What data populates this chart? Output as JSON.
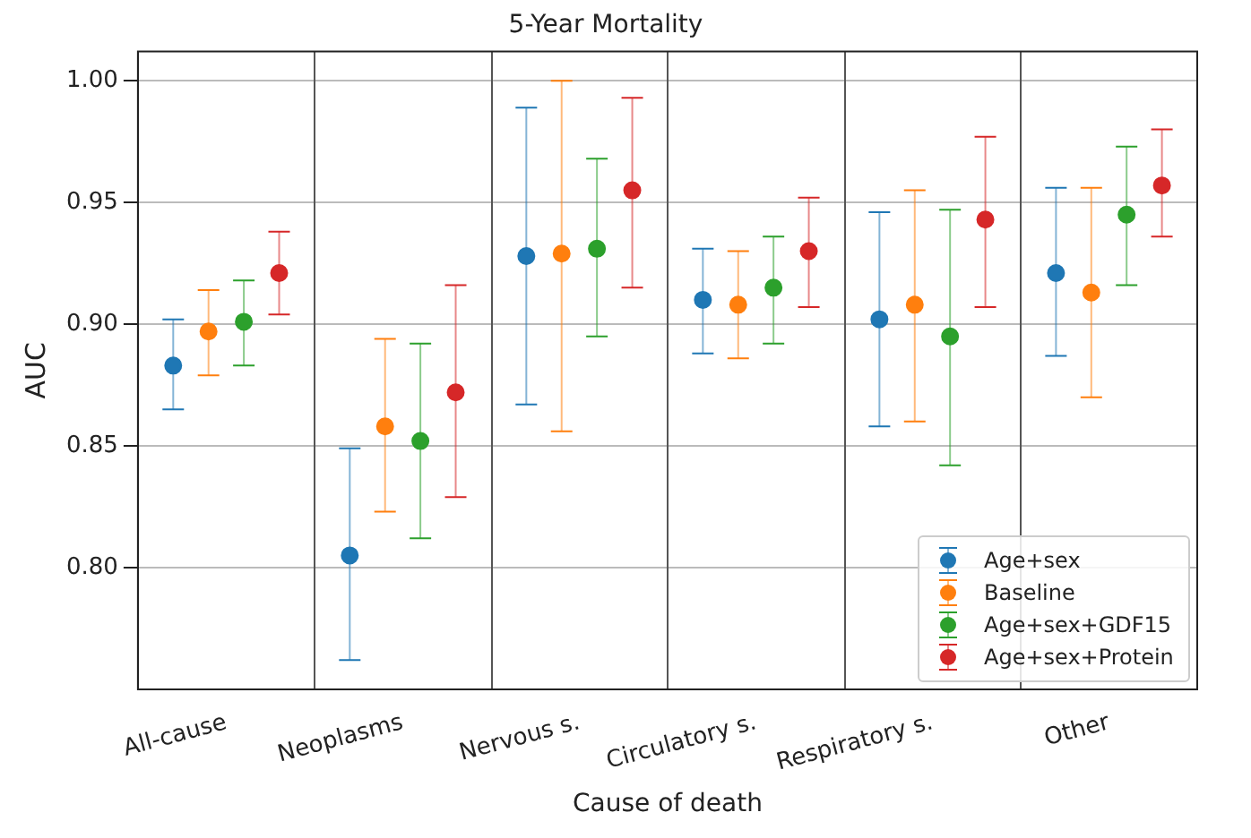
{
  "chart_data": {
    "type": "scatter",
    "title": "5-Year Mortality",
    "xlabel": "Cause of death",
    "ylabel": "AUC",
    "categories": [
      "All-cause",
      "Neoplasms",
      "Nervous s.",
      "Circulatory s.",
      "Respiratory s.",
      "Other"
    ],
    "ylim": [
      0.75,
      1.012
    ],
    "yticks": [
      {
        "value": 0.8,
        "label": "0.80"
      },
      {
        "value": 0.85,
        "label": "0.85"
      },
      {
        "value": 0.9,
        "label": "0.90"
      },
      {
        "value": 0.95,
        "label": "0.95"
      },
      {
        "value": 1.0,
        "label": "1.00"
      }
    ],
    "grid": true,
    "legend": "bottom right",
    "marker": "circle",
    "series": [
      {
        "name": "Age+sex",
        "color": "#1f77b4",
        "values": [
          0.883,
          0.805,
          0.928,
          0.91,
          0.902,
          0.921
        ],
        "errors": [
          [
            0.865,
            0.902
          ],
          [
            0.762,
            0.849
          ],
          [
            0.867,
            0.989
          ],
          [
            0.888,
            0.931
          ],
          [
            0.858,
            0.946
          ],
          [
            0.887,
            0.956
          ]
        ]
      },
      {
        "name": "Baseline",
        "color": "#ff7f0e",
        "values": [
          0.897,
          0.858,
          0.929,
          0.908,
          0.908,
          0.913
        ],
        "errors": [
          [
            0.879,
            0.914
          ],
          [
            0.823,
            0.894
          ],
          [
            0.856,
            1.0
          ],
          [
            0.886,
            0.93
          ],
          [
            0.86,
            0.955
          ],
          [
            0.87,
            0.956
          ]
        ]
      },
      {
        "name": "Age+sex+GDF15",
        "color": "#2ca02c",
        "values": [
          0.901,
          0.852,
          0.931,
          0.915,
          0.895,
          0.945
        ],
        "errors": [
          [
            0.883,
            0.918
          ],
          [
            0.812,
            0.892
          ],
          [
            0.895,
            0.968
          ],
          [
            0.892,
            0.936
          ],
          [
            0.842,
            0.947
          ],
          [
            0.916,
            0.973
          ]
        ]
      },
      {
        "name": "Age+sex+Protein",
        "color": "#d62728",
        "values": [
          0.921,
          0.872,
          0.955,
          0.93,
          0.943,
          0.957
        ],
        "errors": [
          [
            0.904,
            0.938
          ],
          [
            0.829,
            0.916
          ],
          [
            0.915,
            0.993
          ],
          [
            0.907,
            0.952
          ],
          [
            0.907,
            0.977
          ],
          [
            0.936,
            0.98
          ]
        ]
      }
    ]
  }
}
